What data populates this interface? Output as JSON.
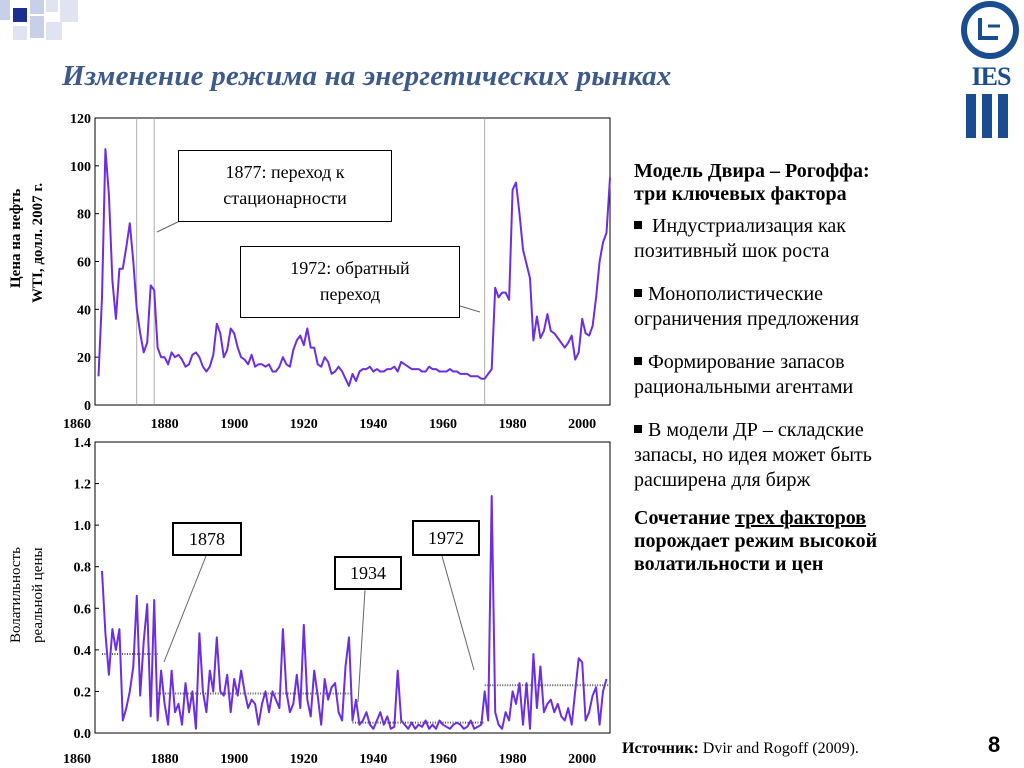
{
  "slide": {
    "title": "Изменение режима на энергетических рынках",
    "page_number": "8",
    "source_label": "Источник:",
    "source_text": " Dvir and Rogoff (2009)."
  },
  "logo": {
    "text": "IES",
    "clock_symbol": "ⴷ"
  },
  "price_panel": {
    "ylabel_line1": "Цена на нефть",
    "ylabel_line2": "WTI, долл. 2007 г.",
    "callout_1877_line1": "1877: переход к",
    "callout_1877_line2": "стационарности",
    "callout_1972_line1": "1972: обратный",
    "callout_1972_line2": "переход"
  },
  "vol_panel": {
    "ylabel_line1": "Волатильность",
    "ylabel_line2": "реальной цены",
    "box_1878": "1878",
    "box_1934": "1934",
    "box_1972": "1972"
  },
  "right_panel": {
    "heading_line1": "Модель Двира – Рогоффа:",
    "heading_line2": "три ключевых фактора",
    "bullets": [
      {
        "line1": "Индустриализация как",
        "line2": "позитивный шок роста"
      },
      {
        "line1": "Монополистические",
        "line2": "ограничения предложения"
      },
      {
        "line1": "Формирование запасов",
        "line2": "рациональными агентами"
      },
      {
        "line1": "В модели ДР – складские",
        "line2": "запасы, но идея может быть",
        "line3": "расширена для бирж"
      }
    ],
    "conclusion_pre": "Сочетание ",
    "conclusion_underlined": "трех факторов",
    "conclusion_line2": "порождает режим высокой",
    "conclusion_line3": "волатильности и цен"
  },
  "colors": {
    "series": "#6b2fe0",
    "title": "#3d5a8a",
    "deco_blue": "#1b2f8f",
    "deco_light": "#c8cfe8"
  },
  "chart_data": [
    {
      "type": "line",
      "ylim": [
        0,
        120
      ],
      "xlim": [
        1860,
        2008
      ],
      "y_ticks": [
        "0",
        "20",
        "40",
        "60",
        "80",
        "100",
        "120"
      ],
      "x_ticks": [
        "1860",
        "1880",
        "1900",
        "1920",
        "1940",
        "1960",
        "1980",
        "2000"
      ],
      "vlines": [
        1872,
        1877,
        1972
      ],
      "x": [
        1861,
        1862,
        1863,
        1864,
        1865,
        1866,
        1867,
        1868,
        1869,
        1870,
        1871,
        1872,
        1873,
        1874,
        1875,
        1876,
        1877,
        1878,
        1879,
        1880,
        1881,
        1882,
        1883,
        1884,
        1885,
        1886,
        1887,
        1888,
        1889,
        1890,
        1891,
        1892,
        1893,
        1894,
        1895,
        1896,
        1897,
        1898,
        1899,
        1900,
        1901,
        1902,
        1903,
        1904,
        1905,
        1906,
        1907,
        1908,
        1909,
        1910,
        1911,
        1912,
        1913,
        1914,
        1915,
        1916,
        1917,
        1918,
        1919,
        1920,
        1921,
        1922,
        1923,
        1924,
        1925,
        1926,
        1927,
        1928,
        1929,
        1930,
        1931,
        1932,
        1933,
        1934,
        1935,
        1936,
        1937,
        1938,
        1939,
        1940,
        1941,
        1942,
        1943,
        1944,
        1945,
        1946,
        1947,
        1948,
        1949,
        1950,
        1951,
        1952,
        1953,
        1954,
        1955,
        1956,
        1957,
        1958,
        1959,
        1960,
        1961,
        1962,
        1963,
        1964,
        1965,
        1966,
        1967,
        1968,
        1969,
        1970,
        1971,
        1972,
        1973,
        1974,
        1975,
        1976,
        1977,
        1978,
        1979,
        1980,
        1981,
        1982,
        1983,
        1984,
        1985,
        1986,
        1987,
        1988,
        1989,
        1990,
        1991,
        1992,
        1993,
        1994,
        1995,
        1996,
        1997,
        1998,
        1999,
        2000,
        2001,
        2002,
        2003,
        2004,
        2005,
        2006,
        2007,
        2008
      ],
      "y": [
        12,
        45,
        107,
        88,
        52,
        36,
        57,
        57,
        66,
        76,
        60,
        40,
        30,
        22,
        26,
        50,
        48,
        24,
        20,
        20,
        17,
        22,
        20,
        21,
        19,
        16,
        17,
        21,
        22,
        20,
        16,
        14,
        16,
        21,
        34,
        30,
        20,
        23,
        32,
        30,
        24,
        20,
        19,
        17,
        21,
        16,
        17,
        17,
        16,
        17,
        14,
        14,
        16,
        20,
        17,
        16,
        23,
        27,
        29,
        25,
        32,
        24,
        24,
        17,
        16,
        20,
        18,
        13,
        14,
        16,
        14,
        11,
        8,
        13,
        10,
        14,
        15,
        15,
        16,
        14,
        15,
        14,
        14,
        15,
        15,
        16,
        14,
        18,
        17,
        16,
        15,
        15,
        15,
        14,
        14,
        16,
        15,
        15,
        14,
        14,
        14,
        15,
        14,
        14,
        13,
        13,
        13,
        12,
        12,
        12,
        11,
        11,
        13,
        15,
        49,
        45,
        47,
        47,
        44,
        90,
        93,
        80,
        65,
        59,
        53,
        27,
        37,
        28,
        31,
        38,
        31,
        30,
        28,
        26,
        24,
        26,
        29,
        19,
        22,
        36,
        30,
        29,
        33,
        45,
        60,
        68,
        72,
        95
      ]
    },
    {
      "type": "line",
      "ylim": [
        0,
        1.4
      ],
      "xlim": [
        1860,
        2008
      ],
      "y_ticks": [
        "0.0",
        "0.2",
        "0.4",
        "0.6",
        "0.8",
        "1.0",
        "1.2",
        "1.4"
      ],
      "x_ticks": [
        "1860",
        "1880",
        "1900",
        "1920",
        "1940",
        "1960",
        "1980",
        "2000"
      ],
      "regime_means": [
        {
          "from": 1862,
          "to": 1878,
          "value": 0.38
        },
        {
          "from": 1878,
          "to": 1934,
          "value": 0.19
        },
        {
          "from": 1934,
          "to": 1972,
          "value": 0.05
        },
        {
          "from": 1972,
          "to": 2008,
          "value": 0.23
        }
      ],
      "x": [
        1862,
        1863,
        1864,
        1865,
        1866,
        1867,
        1868,
        1869,
        1870,
        1871,
        1872,
        1873,
        1874,
        1875,
        1876,
        1877,
        1878,
        1879,
        1880,
        1881,
        1882,
        1883,
        1884,
        1885,
        1886,
        1887,
        1888,
        1889,
        1890,
        1891,
        1892,
        1893,
        1894,
        1895,
        1896,
        1897,
        1898,
        1899,
        1900,
        1901,
        1902,
        1903,
        1904,
        1905,
        1906,
        1907,
        1908,
        1909,
        1910,
        1911,
        1912,
        1913,
        1914,
        1915,
        1916,
        1917,
        1918,
        1919,
        1920,
        1921,
        1922,
        1923,
        1924,
        1925,
        1926,
        1927,
        1928,
        1929,
        1930,
        1931,
        1932,
        1933,
        1934,
        1935,
        1936,
        1937,
        1938,
        1939,
        1940,
        1941,
        1942,
        1943,
        1944,
        1945,
        1946,
        1947,
        1948,
        1949,
        1950,
        1951,
        1952,
        1953,
        1954,
        1955,
        1956,
        1957,
        1958,
        1959,
        1960,
        1961,
        1962,
        1963,
        1964,
        1965,
        1966,
        1967,
        1968,
        1969,
        1970,
        1971,
        1972,
        1973,
        1974,
        1975,
        1976,
        1977,
        1978,
        1979,
        1980,
        1981,
        1982,
        1983,
        1984,
        1985,
        1986,
        1987,
        1988,
        1989,
        1990,
        1991,
        1992,
        1993,
        1994,
        1995,
        1996,
        1997,
        1998,
        1999,
        2000,
        2001,
        2002,
        2003,
        2004,
        2005,
        2006,
        2007
      ],
      "y": [
        0.78,
        0.48,
        0.28,
        0.5,
        0.4,
        0.5,
        0.06,
        0.12,
        0.2,
        0.32,
        0.66,
        0.18,
        0.44,
        0.62,
        0.08,
        0.64,
        0.06,
        0.3,
        0.14,
        0.04,
        0.3,
        0.1,
        0.14,
        0.04,
        0.24,
        0.1,
        0.2,
        0.02,
        0.48,
        0.2,
        0.1,
        0.3,
        0.2,
        0.46,
        0.2,
        0.18,
        0.28,
        0.1,
        0.26,
        0.18,
        0.3,
        0.2,
        0.12,
        0.16,
        0.14,
        0.04,
        0.14,
        0.2,
        0.1,
        0.2,
        0.16,
        0.12,
        0.5,
        0.2,
        0.1,
        0.14,
        0.28,
        0.12,
        0.52,
        0.16,
        0.08,
        0.3,
        0.18,
        0.04,
        0.26,
        0.16,
        0.22,
        0.24,
        0.1,
        0.06,
        0.32,
        0.46,
        0.06,
        0.16,
        0.04,
        0.06,
        0.1,
        0.04,
        0.02,
        0.06,
        0.1,
        0.04,
        0.08,
        0.02,
        0.03,
        0.3,
        0.06,
        0.04,
        0.02,
        0.05,
        0.02,
        0.04,
        0.03,
        0.06,
        0.02,
        0.04,
        0.02,
        0.06,
        0.04,
        0.03,
        0.02,
        0.04,
        0.05,
        0.04,
        0.02,
        0.03,
        0.06,
        0.02,
        0.03,
        0.04,
        0.2,
        0.06,
        1.14,
        0.1,
        0.04,
        0.02,
        0.1,
        0.06,
        0.2,
        0.14,
        0.24,
        0.04,
        0.24,
        0.02,
        0.38,
        0.12,
        0.32,
        0.1,
        0.14,
        0.16,
        0.1,
        0.14,
        0.08,
        0.06,
        0.12,
        0.04,
        0.2,
        0.36,
        0.34,
        0.06,
        0.1,
        0.18,
        0.22,
        0.04,
        0.2,
        0.26
      ]
    }
  ]
}
